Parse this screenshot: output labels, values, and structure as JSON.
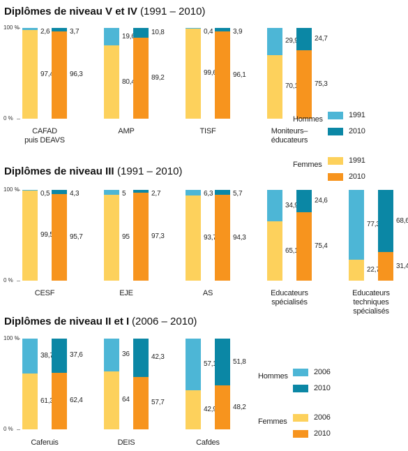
{
  "chart_data": [
    {
      "type": "stacked-bar",
      "title": "Diplômes de niveau V et IV",
      "period": "(1991 – 2010)",
      "categories": [
        "CAFAD\npuis DEAVS",
        "AMP",
        "TISF",
        "Moniteurs–\néducateurs"
      ],
      "ylim": [
        0,
        100
      ],
      "yticks": [
        {
          "value": 0,
          "label": "0 %"
        },
        {
          "value": 100,
          "label": "100 %"
        }
      ],
      "legend": true,
      "series": [
        {
          "group": "Hommes",
          "name": "1991",
          "color": "#4db6d6",
          "values": [
            2.6,
            19.6,
            0.4,
            29.9
          ],
          "value_labels": [
            "2,6",
            "19,6",
            "0,4",
            "29,9"
          ]
        },
        {
          "group": "Hommes",
          "name": "2010",
          "color": "#0b87a5",
          "values": [
            3.7,
            10.8,
            3.9,
            24.7
          ],
          "value_labels": [
            "3,7",
            "10,8",
            "3,9",
            "24,7"
          ]
        },
        {
          "group": "Femmes",
          "name": "1991",
          "color": "#fdd15c",
          "values": [
            97.4,
            80.4,
            99.6,
            70.1
          ],
          "value_labels": [
            "97,4",
            "80,4",
            "99,6",
            "70,1"
          ]
        },
        {
          "group": "Femmes",
          "name": "2010",
          "color": "#f7941e",
          "values": [
            96.3,
            89.2,
            96.1,
            75.3
          ],
          "value_labels": [
            "96,3",
            "89,2",
            "96,1",
            "75,3"
          ]
        }
      ]
    },
    {
      "type": "stacked-bar",
      "title": "Diplômes de niveau III",
      "period": "(1991 – 2010)",
      "categories": [
        "CESF",
        "EJE",
        "AS",
        "Educateurs\nspécialisés",
        "Educateurs\ntechniques\nspécialisés"
      ],
      "ylim": [
        0,
        100
      ],
      "yticks": [
        {
          "value": 0,
          "label": "0 %"
        },
        {
          "value": 100,
          "label": "100 %"
        }
      ],
      "legend": false,
      "series": [
        {
          "group": "Hommes",
          "name": "1991",
          "color": "#4db6d6",
          "values": [
            0.5,
            5,
            6.3,
            34.9,
            77.3
          ],
          "value_labels": [
            "0,5",
            "5",
            "6,3",
            "34,9",
            "77,3"
          ]
        },
        {
          "group": "Hommes",
          "name": "2010",
          "color": "#0b87a5",
          "values": [
            4.3,
            2.7,
            5.7,
            24.6,
            68.6
          ],
          "value_labels": [
            "4,3",
            "2,7",
            "5,7",
            "24,6",
            "68,6"
          ]
        },
        {
          "group": "Femmes",
          "name": "1991",
          "color": "#fdd15c",
          "values": [
            99.5,
            95,
            93.7,
            65.1,
            22.7
          ],
          "value_labels": [
            "99,5",
            "95",
            "93,7",
            "65,1",
            "22,7"
          ]
        },
        {
          "group": "Femmes",
          "name": "2010",
          "color": "#f7941e",
          "values": [
            95.7,
            97.3,
            94.3,
            75.4,
            31.4
          ],
          "value_labels": [
            "95,7",
            "97,3",
            "94,3",
            "75,4",
            "31,4"
          ]
        }
      ]
    },
    {
      "type": "stacked-bar",
      "title": "Diplômes de niveau II et I",
      "period": "(2006 – 2010)",
      "categories": [
        "Caferuis",
        "DEIS",
        "Cafdes"
      ],
      "ylim": [
        0,
        100
      ],
      "yticks": [
        {
          "value": 0,
          "label": "0 %"
        },
        {
          "value": 100,
          "label": "100 %"
        }
      ],
      "legend": true,
      "series": [
        {
          "group": "Hommes",
          "name": "2006",
          "color": "#4db6d6",
          "values": [
            38.7,
            36,
            57.1
          ],
          "value_labels": [
            "38,7",
            "36",
            "57,1"
          ]
        },
        {
          "group": "Hommes",
          "name": "2010",
          "color": "#0b87a5",
          "values": [
            37.6,
            42.3,
            51.8
          ],
          "value_labels": [
            "37,6",
            "42,3",
            "51,8"
          ]
        },
        {
          "group": "Femmes",
          "name": "2006",
          "color": "#fdd15c",
          "values": [
            61.3,
            64,
            42.9
          ],
          "value_labels": [
            "61,3",
            "64",
            "42,9"
          ]
        },
        {
          "group": "Femmes",
          "name": "2010",
          "color": "#f7941e",
          "values": [
            62.4,
            57.7,
            48.2
          ],
          "value_labels": [
            "62,4",
            "57,7",
            "48,2"
          ]
        }
      ]
    }
  ]
}
